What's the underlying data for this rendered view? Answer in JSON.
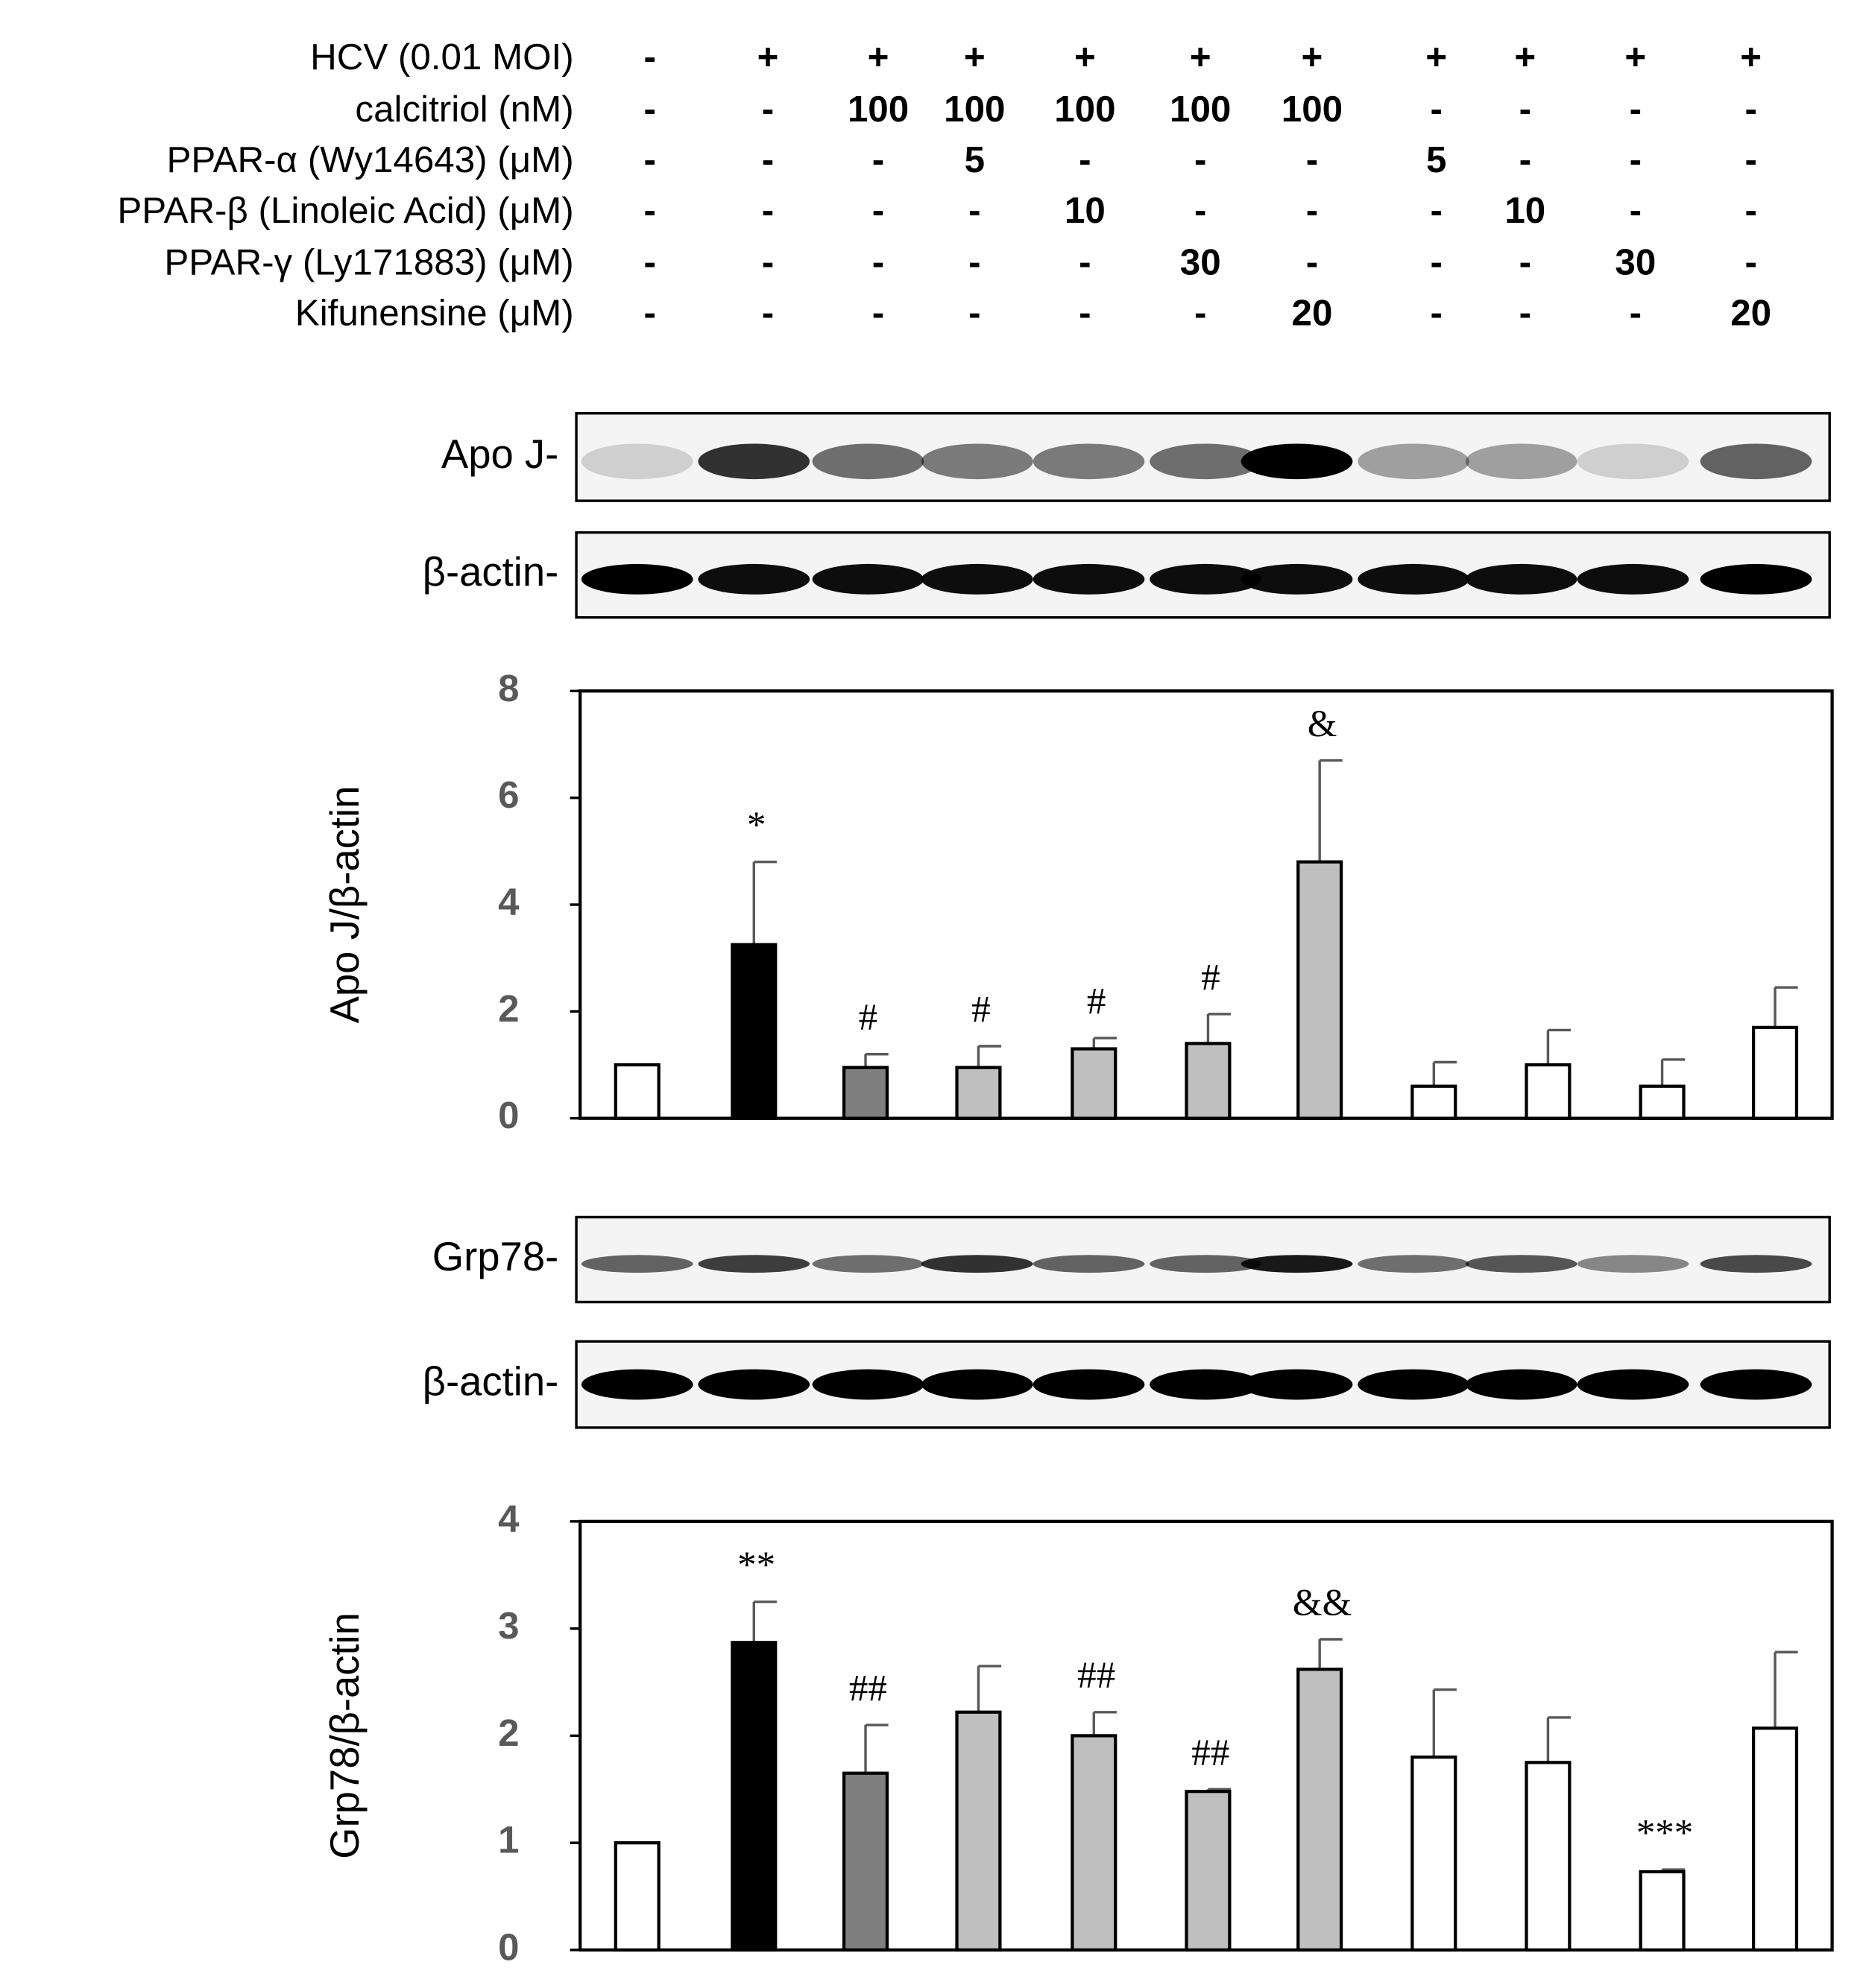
{
  "treatments": {
    "rows": [
      {
        "label": "HCV (0.01 MOI)",
        "lanes": [
          "-",
          "+",
          "+",
          "+",
          "+",
          "+",
          "+",
          "+",
          "+",
          "+",
          "+"
        ]
      },
      {
        "label": "calcitriol (nM)",
        "lanes": [
          "-",
          "-",
          "100",
          "100",
          "100",
          "100",
          "100",
          "-",
          "-",
          "-",
          "-"
        ]
      },
      {
        "label": "PPAR-α (Wy14643) (μM)",
        "lanes": [
          "-",
          "-",
          "-",
          "5",
          "-",
          "-",
          "-",
          "5",
          "-",
          "-",
          "-"
        ]
      },
      {
        "label": "PPAR-β (Linoleic Acid) (μM)",
        "lanes": [
          "-",
          "-",
          "-",
          "-",
          "10",
          "-",
          "-",
          "-",
          "10",
          "-",
          "-"
        ]
      },
      {
        "label": "PPAR-γ (Ly171883) (μM)",
        "lanes": [
          "-",
          "-",
          "-",
          "-",
          "-",
          "30",
          "-",
          "-",
          "-",
          "30",
          "-"
        ]
      },
      {
        "label": "Kifunensine (μM)",
        "lanes": [
          "-",
          "-",
          "-",
          "-",
          "-",
          "-",
          "20",
          "-",
          "-",
          "-",
          "20"
        ]
      }
    ]
  },
  "blots": [
    "Apo J-",
    "β-actin-",
    "Grp78-",
    "β-actin-"
  ],
  "chart_data": [
    {
      "type": "bar",
      "y_label": "Apo J/β-actin",
      "categories": [
        null,
        null,
        null,
        null,
        null,
        null,
        null,
        null,
        null,
        null,
        null
      ],
      "values": [
        1.0,
        3.25,
        0.95,
        0.95,
        1.3,
        1.4,
        4.8,
        0.6,
        1.0,
        0.6,
        1.7
      ],
      "errors": [
        0,
        1.55,
        0.25,
        0.4,
        0.2,
        0.55,
        1.9,
        0.45,
        0.65,
        0.5,
        0.75
      ],
      "annotations": [
        null,
        "*",
        "#",
        "#",
        "#",
        "#",
        "&",
        null,
        null,
        null,
        null
      ],
      "colors": [
        "#ffffff",
        "#000000",
        "#7f7f7f",
        "#bfbfbf",
        "#bfbfbf",
        "#bfbfbf",
        "#bfbfbf",
        "#ffffff",
        "#ffffff",
        "#ffffff",
        "#ffffff"
      ],
      "ylim": [
        0,
        8
      ],
      "yticks": [
        0,
        2,
        4,
        6,
        8
      ]
    },
    {
      "type": "bar",
      "y_label": "Grp78/β-actin",
      "categories": [
        null,
        null,
        null,
        null,
        null,
        null,
        null,
        null,
        null,
        null,
        null
      ],
      "values": [
        1.0,
        2.87,
        1.65,
        2.22,
        2.0,
        1.48,
        2.62,
        1.8,
        1.75,
        0.73,
        2.07
      ],
      "errors": [
        0,
        0.38,
        0.45,
        0.43,
        0.22,
        0.02,
        0.28,
        0.63,
        0.42,
        0.02,
        0.71
      ],
      "annotations": [
        null,
        "**",
        "##",
        null,
        "##",
        "##",
        "&&",
        null,
        null,
        "***",
        null
      ],
      "colors": [
        "#ffffff",
        "#000000",
        "#7f7f7f",
        "#bfbfbf",
        "#bfbfbf",
        "#bfbfbf",
        "#bfbfbf",
        "#ffffff",
        "#ffffff",
        "#ffffff",
        "#ffffff"
      ],
      "ylim": [
        0,
        4
      ],
      "yticks": [
        0,
        1,
        2,
        3,
        4
      ]
    }
  ]
}
